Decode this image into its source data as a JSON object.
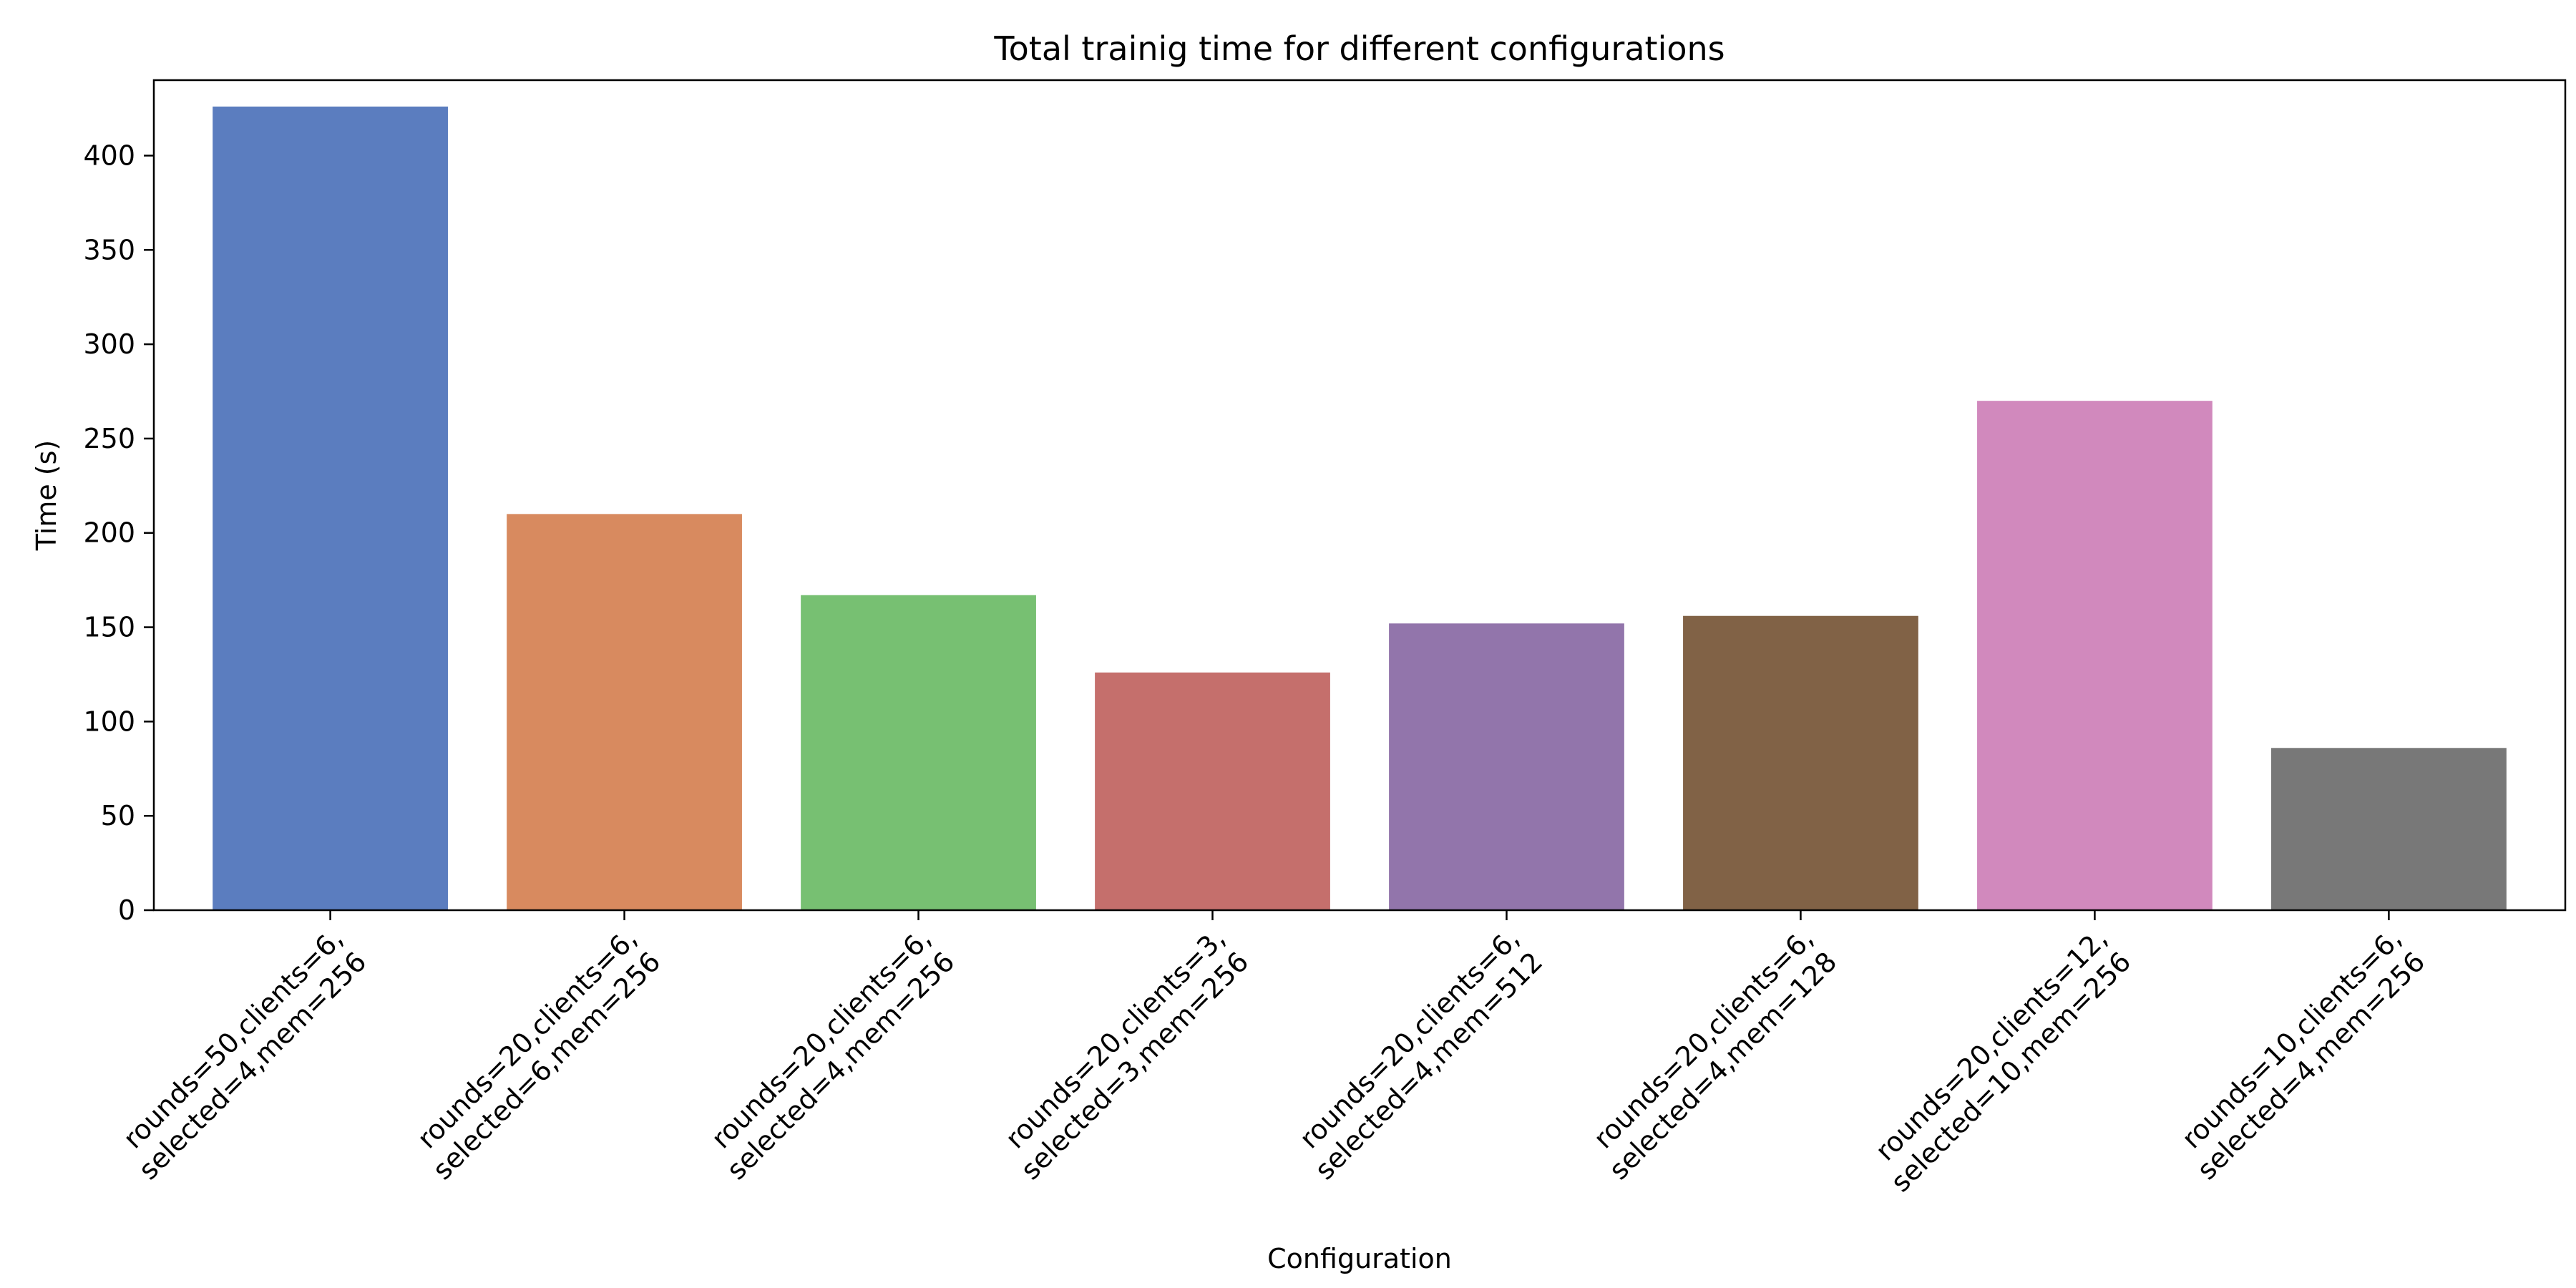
{
  "chart_data": {
    "type": "bar",
    "title": "Total trainig time for different configurations",
    "xlabel": "Configuration",
    "ylabel": "Time (s)",
    "ylim": [
      0,
      440
    ],
    "yticks": [
      0,
      50,
      100,
      150,
      200,
      250,
      300,
      350,
      400
    ],
    "grid": false,
    "categories": [
      [
        "rounds=50,clients=6,",
        "selected=4,mem=256"
      ],
      [
        "rounds=20,clients=6,",
        "selected=6,mem=256"
      ],
      [
        "rounds=20,clients=6,",
        "selected=4,mem=256"
      ],
      [
        "rounds=20,clients=3,",
        "selected=3,mem=256"
      ],
      [
        "rounds=20,clients=6,",
        "selected=4,mem=512"
      ],
      [
        "rounds=20,clients=6,",
        "selected=4,mem=128"
      ],
      [
        "rounds=20,clients=12,",
        "selected=10,mem=256"
      ],
      [
        "rounds=10,clients=6,",
        "selected=4,mem=256"
      ]
    ],
    "values": [
      426,
      210,
      167,
      126,
      152,
      156,
      270,
      86
    ],
    "colors": [
      "#5b7dbf",
      "#d88a5f",
      "#77c072",
      "#c56f6c",
      "#9275ab",
      "#816246",
      "#d189bd",
      "#787878"
    ]
  }
}
